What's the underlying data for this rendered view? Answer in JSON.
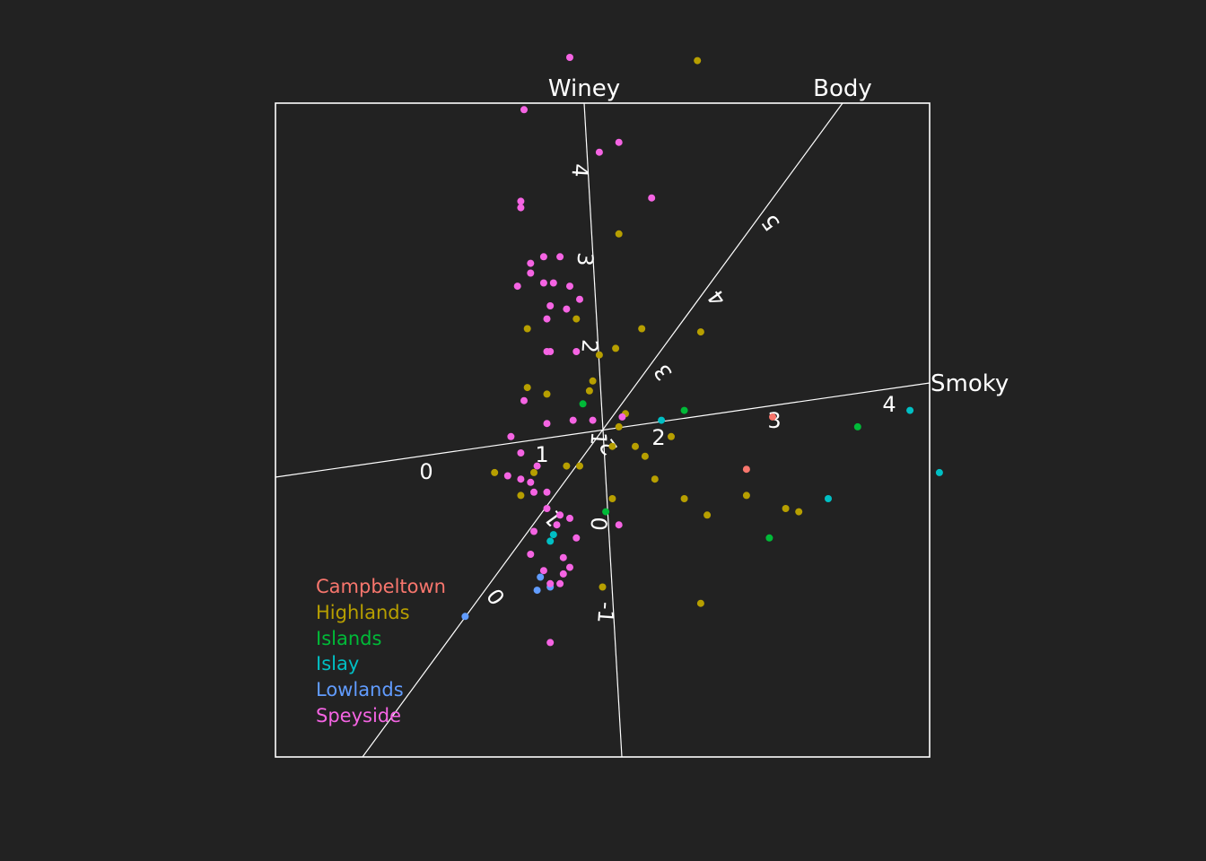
{
  "chart_data": {
    "type": "scatter",
    "title": "",
    "axes": [
      {
        "name": "Winey",
        "ticks": [
          "4",
          "3",
          "2",
          "1",
          "0",
          "-1"
        ]
      },
      {
        "name": "Body",
        "ticks": [
          "5",
          "4",
          "3",
          "2",
          "1",
          "0"
        ]
      },
      {
        "name": "Smoky",
        "ticks": [
          "0",
          "1",
          "2",
          "3",
          "4"
        ]
      }
    ],
    "legend": {
      "placement": "bottom-left",
      "entries": [
        "Campbeltown",
        "Highlands",
        "Islands",
        "Islay",
        "Lowlands",
        "Speyside"
      ]
    },
    "colors": {
      "Campbeltown": "#f8766d",
      "Highlands": "#b79f00",
      "Islands": "#00ba38",
      "Islay": "#00bfc4",
      "Lowlands": "#619cff",
      "Speyside": "#f564e3",
      "axes": "#ffffff",
      "background": "#222222"
    },
    "note_units": "points given in projection coordinates (x right, y up)",
    "series": [
      {
        "name": "Campbeltown",
        "points": [
          [
            0.52,
            0.04
          ],
          [
            0.44,
            -0.12
          ]
        ]
      },
      {
        "name": "Highlands",
        "points": [
          [
            0.29,
            1.13
          ],
          [
            0.05,
            0.6
          ],
          [
            0.3,
            0.3
          ],
          [
            0.12,
            0.31
          ],
          [
            0.04,
            0.25
          ],
          [
            -0.01,
            0.23
          ],
          [
            -0.03,
            0.15
          ],
          [
            -0.04,
            0.12
          ],
          [
            0.07,
            0.05
          ],
          [
            0.05,
            0.01
          ],
          [
            -0.08,
            0.34
          ],
          [
            -0.23,
            0.31
          ],
          [
            -0.17,
            0.11
          ],
          [
            -0.23,
            0.13
          ],
          [
            0.21,
            -0.02
          ],
          [
            0.13,
            -0.08
          ],
          [
            0.1,
            -0.05
          ],
          [
            0.03,
            -0.05
          ],
          [
            -0.07,
            -0.11
          ],
          [
            -0.11,
            -0.11
          ],
          [
            -0.21,
            -0.13
          ],
          [
            -0.33,
            -0.13
          ],
          [
            -0.25,
            -0.2
          ],
          [
            0.16,
            -0.15
          ],
          [
            0.25,
            -0.21
          ],
          [
            0.44,
            -0.2
          ],
          [
            0.03,
            -0.21
          ],
          [
            0.32,
            -0.26
          ],
          [
            0.6,
            -0.25
          ],
          [
            0.56,
            -0.24
          ],
          [
            0.3,
            -0.53
          ],
          [
            0.0,
            -0.48
          ]
        ]
      },
      {
        "name": "Islands",
        "points": [
          [
            0.25,
            0.06
          ],
          [
            0.78,
            0.01
          ],
          [
            -0.06,
            0.08
          ],
          [
            0.01,
            -0.25
          ],
          [
            0.51,
            -0.33
          ]
        ]
      },
      {
        "name": "Islay",
        "points": [
          [
            0.18,
            0.03
          ],
          [
            0.94,
            0.06
          ],
          [
            1.03,
            -0.13
          ],
          [
            0.69,
            -0.21
          ],
          [
            -0.15,
            -0.32
          ],
          [
            -0.16,
            -0.34
          ]
        ]
      },
      {
        "name": "Lowlands",
        "points": [
          [
            -0.42,
            -0.57
          ],
          [
            -0.2,
            -0.49
          ],
          [
            -0.16,
            -0.48
          ],
          [
            -0.19,
            -0.45
          ]
        ]
      },
      {
        "name": "Speyside",
        "points": [
          [
            -0.1,
            1.14
          ],
          [
            -0.24,
            0.98
          ],
          [
            0.05,
            0.88
          ],
          [
            -0.01,
            0.85
          ],
          [
            0.15,
            0.71
          ],
          [
            -0.25,
            0.7
          ],
          [
            -0.25,
            0.68
          ],
          [
            -0.18,
            0.53
          ],
          [
            -0.22,
            0.51
          ],
          [
            -0.22,
            0.48
          ],
          [
            -0.13,
            0.53
          ],
          [
            -0.18,
            0.45
          ],
          [
            -0.26,
            0.44
          ],
          [
            -0.15,
            0.45
          ],
          [
            -0.1,
            0.44
          ],
          [
            -0.16,
            0.38
          ],
          [
            -0.11,
            0.37
          ],
          [
            -0.17,
            0.34
          ],
          [
            -0.07,
            0.4
          ],
          [
            -0.17,
            0.24
          ],
          [
            -0.16,
            0.24
          ],
          [
            -0.08,
            0.24
          ],
          [
            -0.24,
            0.09
          ],
          [
            -0.17,
            0.02
          ],
          [
            -0.09,
            0.03
          ],
          [
            -0.03,
            0.03
          ],
          [
            0.06,
            0.04
          ],
          [
            -0.28,
            -0.02
          ],
          [
            -0.25,
            -0.07
          ],
          [
            -0.2,
            -0.11
          ],
          [
            -0.29,
            -0.14
          ],
          [
            -0.25,
            -0.15
          ],
          [
            -0.22,
            -0.16
          ],
          [
            -0.21,
            -0.19
          ],
          [
            -0.17,
            -0.19
          ],
          [
            -0.17,
            -0.24
          ],
          [
            -0.13,
            -0.26
          ],
          [
            -0.21,
            -0.31
          ],
          [
            -0.14,
            -0.29
          ],
          [
            -0.1,
            -0.27
          ],
          [
            -0.08,
            -0.33
          ],
          [
            0.05,
            -0.29
          ],
          [
            -0.12,
            -0.39
          ],
          [
            -0.22,
            -0.38
          ],
          [
            -0.18,
            -0.43
          ],
          [
            -0.16,
            -0.47
          ],
          [
            -0.13,
            -0.47
          ],
          [
            -0.12,
            -0.44
          ],
          [
            -0.1,
            -0.42
          ],
          [
            -0.16,
            -0.65
          ]
        ]
      }
    ]
  }
}
